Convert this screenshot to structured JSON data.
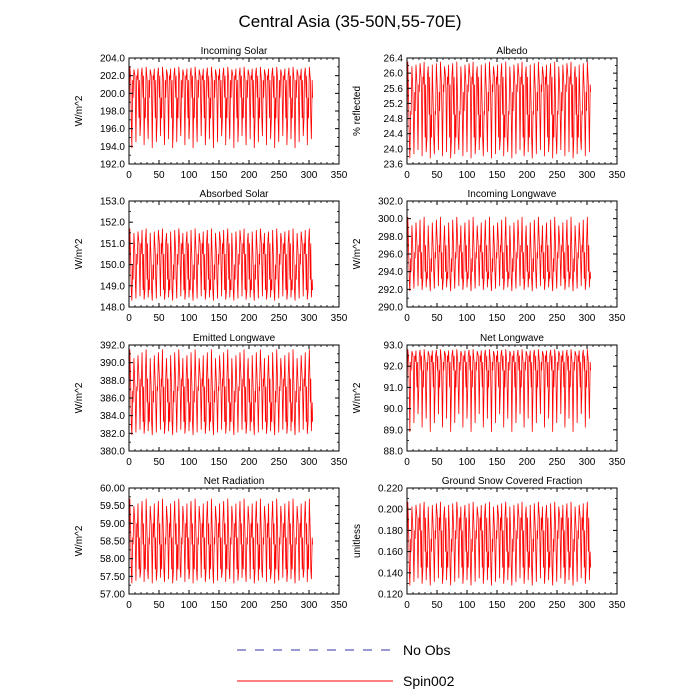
{
  "title": "Central Asia (35-50N,55-70E)",
  "colors": {
    "series": "#ff0000",
    "obs": "#3333aa",
    "axis": "#000000"
  },
  "legend": {
    "items": [
      {
        "label": "No Obs",
        "style": "dashed",
        "color": "#3333aa"
      },
      {
        "label": "Spin002",
        "style": "solid",
        "color": "#ff0000"
      }
    ]
  },
  "chart_data": [
    {
      "type": "line",
      "title": "Incoming Solar",
      "ylabel": "W/m^2",
      "xlim": [
        0,
        350
      ],
      "xticks": [
        "0",
        "50",
        "100",
        "150",
        "200",
        "250",
        "300",
        "350"
      ],
      "ylim": [
        192,
        204
      ],
      "yticks": [
        "192.0",
        "194.0",
        "196.0",
        "198.0",
        "200.0",
        "202.0",
        "204.0"
      ],
      "x_end": 307,
      "cycle_period": 6.8,
      "min": 193.8,
      "max": 203.0,
      "levels": [
        197.2,
        199.5,
        201.5,
        202.0
      ]
    },
    {
      "type": "line",
      "title": "Albedo",
      "ylabel": "% reflected",
      "xlim": [
        0,
        350
      ],
      "xticks": [
        "0",
        "50",
        "100",
        "150",
        "200",
        "250",
        "300",
        "350"
      ],
      "ylim": [
        23.6,
        26.4
      ],
      "yticks": [
        "23.6",
        "24.0",
        "24.4",
        "24.8",
        "25.2",
        "25.6",
        "26.0",
        "26.4"
      ],
      "x_end": 307,
      "cycle_period": 6.8,
      "min": 23.75,
      "max": 26.3,
      "levels": [
        24.3,
        24.9,
        25.0,
        25.5,
        25.7,
        25.9
      ]
    },
    {
      "type": "line",
      "title": "Absorbed Solar",
      "ylabel": "W/m^2",
      "xlim": [
        0,
        350
      ],
      "xticks": [
        "0",
        "50",
        "100",
        "150",
        "200",
        "250",
        "300",
        "350"
      ],
      "ylim": [
        148,
        153
      ],
      "yticks": [
        "148.0",
        "149.0",
        "150.0",
        "151.0",
        "152.0",
        "153.0"
      ],
      "x_end": 307,
      "cycle_period": 6.8,
      "min": 148.3,
      "max": 151.7,
      "levels": [
        148.8,
        149.3,
        150.0,
        150.5,
        151.0
      ]
    },
    {
      "type": "line",
      "title": "Incoming Longwave",
      "ylabel": "W/m^2",
      "xlim": [
        0,
        350
      ],
      "xticks": [
        "0",
        "50",
        "100",
        "150",
        "200",
        "250",
        "300",
        "350"
      ],
      "ylim": [
        290,
        302
      ],
      "yticks": [
        "290.0",
        "292.0",
        "294.0",
        "296.0",
        "298.0",
        "300.0",
        "302.0"
      ],
      "x_end": 307,
      "cycle_period": 6.8,
      "min": 291.8,
      "max": 300.2,
      "levels": [
        293.2,
        294.0,
        295.5,
        296.2,
        297.0
      ]
    },
    {
      "type": "line",
      "title": "Emitted Longwave",
      "ylabel": "W/m^2",
      "xlim": [
        0,
        350
      ],
      "xticks": [
        "0",
        "50",
        "100",
        "150",
        "200",
        "250",
        "300",
        "350"
      ],
      "ylim": [
        380,
        392
      ],
      "yticks": [
        "380.0",
        "382.0",
        "384.0",
        "386.0",
        "388.0",
        "390.0",
        "392.0"
      ],
      "x_end": 307,
      "cycle_period": 6.8,
      "min": 381.8,
      "max": 391.5,
      "levels": [
        383.3,
        385.5,
        386.8,
        387.3,
        388.2
      ]
    },
    {
      "type": "line",
      "title": "Net Longwave",
      "ylabel": "W/m^2",
      "xlim": [
        0,
        350
      ],
      "xticks": [
        "0",
        "50",
        "100",
        "150",
        "200",
        "250",
        "300",
        "350"
      ],
      "ylim": [
        88,
        93
      ],
      "yticks": [
        "88.0",
        "89.0",
        "90.0",
        "91.0",
        "92.0",
        "93.0"
      ],
      "x_end": 307,
      "cycle_period": 6.8,
      "min": 88.9,
      "max": 92.8,
      "levels": [
        91.0,
        91.8,
        92.2,
        92.5
      ]
    },
    {
      "type": "line",
      "title": "Net Radiation",
      "ylabel": "W/m^2",
      "xlim": [
        0,
        350
      ],
      "xticks": [
        "0",
        "50",
        "100",
        "150",
        "200",
        "250",
        "300",
        "350"
      ],
      "ylim": [
        57,
        60
      ],
      "yticks": [
        "57.00",
        "57.50",
        "58.00",
        "58.50",
        "59.00",
        "59.50",
        "60.00"
      ],
      "x_end": 307,
      "cycle_period": 6.8,
      "min": 57.3,
      "max": 59.7,
      "levels": [
        57.7,
        58.4,
        58.6,
        59.0
      ]
    },
    {
      "type": "line",
      "title": "Ground Snow Covered Fraction",
      "ylabel": "unitless",
      "xlim": [
        0,
        350
      ],
      "xticks": [
        "0",
        "50",
        "100",
        "150",
        "200",
        "250",
        "300",
        "350"
      ],
      "ylim": [
        0.12,
        0.22
      ],
      "yticks": [
        "0.120",
        "0.140",
        "0.160",
        "0.180",
        "0.200",
        "0.220"
      ],
      "x_end": 307,
      "cycle_period": 6.8,
      "min": 0.128,
      "max": 0.207,
      "levels": [
        0.145,
        0.16,
        0.172,
        0.18,
        0.192
      ]
    }
  ]
}
